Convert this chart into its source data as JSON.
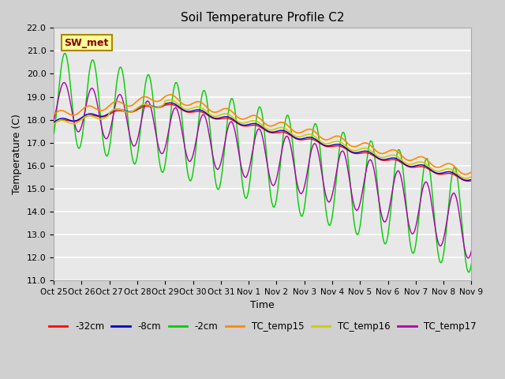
{
  "title": "Soil Temperature Profile C2",
  "xlabel": "Time",
  "ylabel": "Temperature (C)",
  "ylim": [
    11.0,
    22.0
  ],
  "yticks": [
    11.0,
    12.0,
    13.0,
    14.0,
    15.0,
    16.0,
    17.0,
    18.0,
    19.0,
    20.0,
    21.0,
    22.0
  ],
  "xtick_labels": [
    "Oct 25",
    "Oct 26",
    "Oct 27",
    "Oct 28",
    "Oct 29",
    "Oct 30",
    "Oct 31",
    "Nov 1",
    "Nov 2",
    "Nov 3",
    "Nov 4",
    "Nov 5",
    "Nov 6",
    "Nov 7",
    "Nov 8",
    "Nov 9"
  ],
  "legend_labels": [
    "-32cm",
    "-8cm",
    "-2cm",
    "TC_temp15",
    "TC_temp16",
    "TC_temp17"
  ],
  "legend_colors": [
    "#ff0000",
    "#0000cc",
    "#00cc00",
    "#ff8800",
    "#cccc00",
    "#aa00aa"
  ],
  "annotation_text": "SW_met",
  "annotation_color": "#880000",
  "annotation_bg": "#ffff99",
  "annotation_border": "#aa8800",
  "title_fontsize": 11
}
